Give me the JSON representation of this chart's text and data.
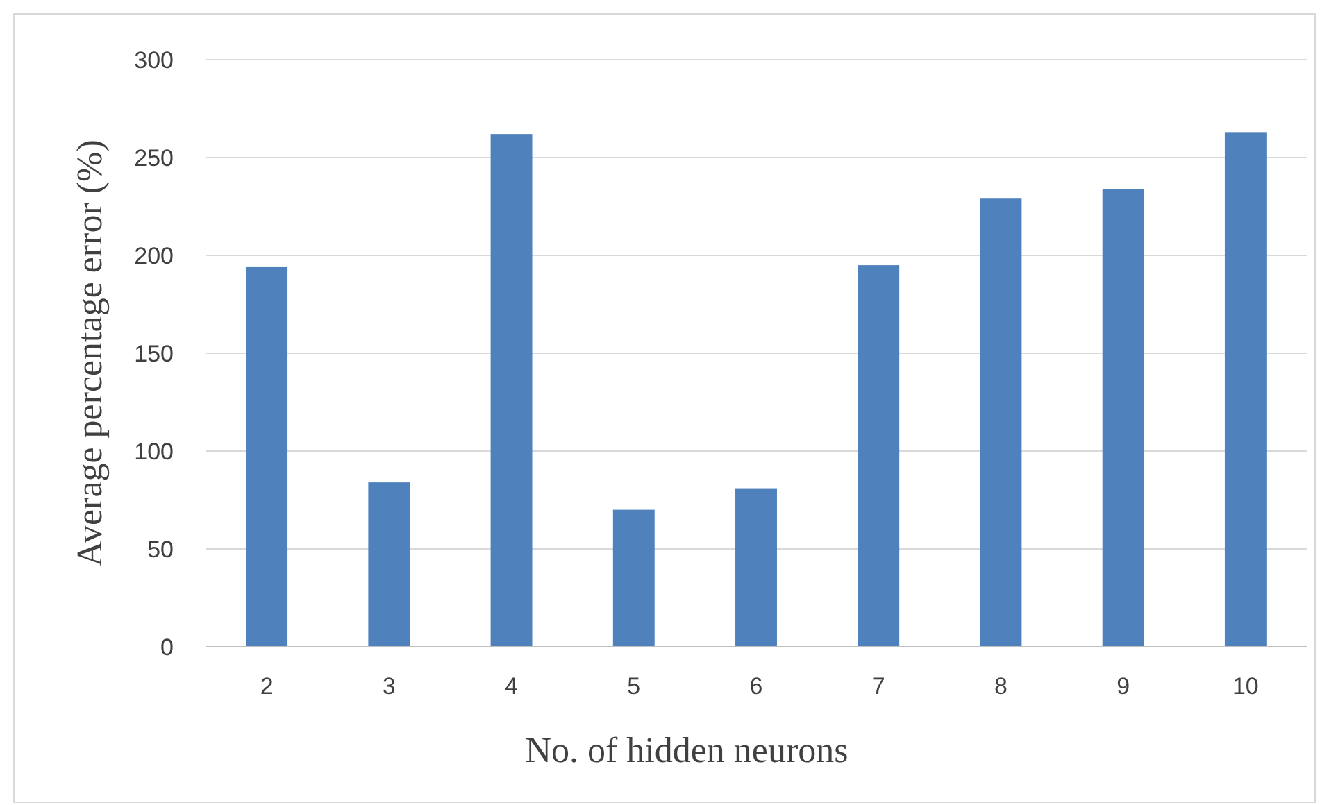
{
  "chart_data": {
    "type": "bar",
    "xlabel": "No. of hidden neurons",
    "ylabel": "Average percentage error (%)",
    "categories": [
      "2",
      "3",
      "4",
      "5",
      "6",
      "7",
      "8",
      "9",
      "10"
    ],
    "values": [
      194,
      84,
      262,
      70,
      81,
      195,
      229,
      234,
      263
    ],
    "color": "#4f81bd",
    "ylim": [
      0,
      300
    ],
    "yticks": [
      0,
      50,
      100,
      150,
      200,
      250,
      300
    ],
    "grid": "y"
  }
}
